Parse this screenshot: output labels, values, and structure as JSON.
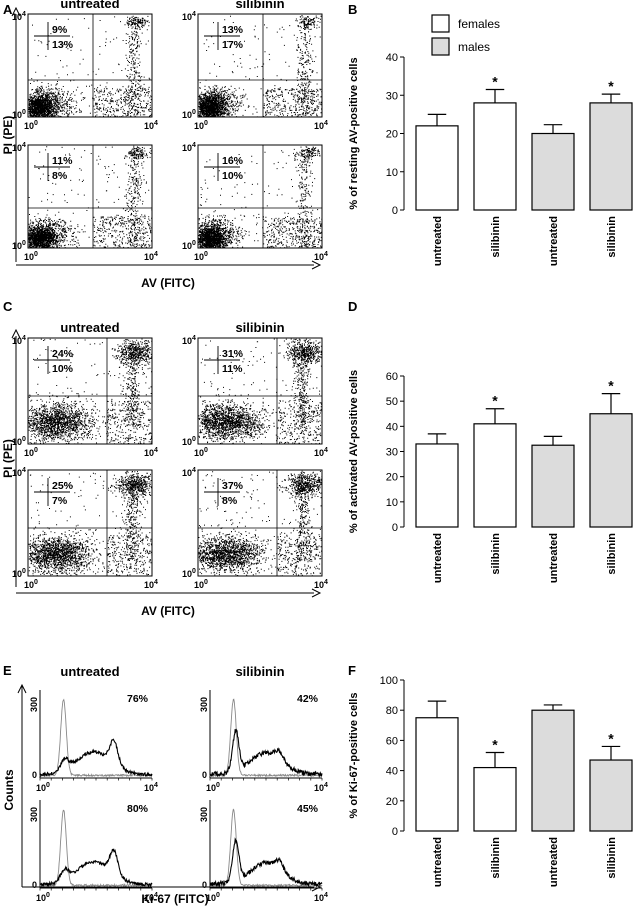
{
  "panels": {
    "A": {
      "label": "A",
      "col_titles": [
        "untreated",
        "silibinin"
      ],
      "ylabel": "PI (PE)",
      "xlabel": "AV (FITC)",
      "tick_low": "10",
      "tick_high": "10",
      "exp_low": "0",
      "exp_high": "4",
      "plots": [
        {
          "upper": "9%",
          "lower": "13%"
        },
        {
          "upper": "13%",
          "lower": "17%"
        },
        {
          "upper": "11%",
          "lower": "8%"
        },
        {
          "upper": "16%",
          "lower": "10%"
        }
      ]
    },
    "C": {
      "label": "C",
      "col_titles": [
        "untreated",
        "silibinin"
      ],
      "ylabel": "PI (PE)",
      "xlabel": "AV (FITC)",
      "tick_low": "10",
      "tick_high": "10",
      "exp_low": "0",
      "exp_high": "4",
      "plots": [
        {
          "upper": "24%",
          "lower": "10%"
        },
        {
          "upper": "31%",
          "lower": "11%"
        },
        {
          "upper": "25%",
          "lower": "7%"
        },
        {
          "upper": "37%",
          "lower": "8%"
        }
      ]
    },
    "E": {
      "label": "E",
      "col_titles": [
        "untreated",
        "silibinin"
      ],
      "ylabel": "Counts",
      "xlabel": "Ki-67 (FITC)",
      "tick_low": "10",
      "tick_high": "10",
      "exp_low": "0",
      "exp_high": "4",
      "ymax": "300",
      "ymin": "0",
      "plots": [
        {
          "pct": "76%"
        },
        {
          "pct": "42%"
        },
        {
          "pct": "80%"
        },
        {
          "pct": "45%"
        }
      ]
    }
  },
  "legend": {
    "females": "females",
    "males": "males"
  },
  "colors": {
    "females_fill": "#ffffff",
    "males_fill": "#dcdcdc",
    "ink": "#000000",
    "gray_trace": "#888888"
  },
  "chart_data": [
    {
      "type": "bar",
      "label": "B",
      "ylabel": "% of resting AV-positive cells",
      "ylim": [
        0,
        40
      ],
      "yticks": [
        0,
        10,
        20,
        30,
        40
      ],
      "categories": [
        "untreated",
        "silibinin",
        "untreated",
        "silibinin"
      ],
      "groups": [
        "females",
        "females",
        "males",
        "males"
      ],
      "values": [
        22,
        28,
        20,
        28
      ],
      "errors": [
        3,
        3.5,
        2.3,
        2.3
      ],
      "significant": [
        false,
        true,
        false,
        true
      ]
    },
    {
      "type": "bar",
      "label": "D",
      "ylabel": "% of activated AV-positive cells",
      "ylim": [
        0,
        60
      ],
      "yticks": [
        0,
        10,
        20,
        30,
        40,
        50,
        60
      ],
      "categories": [
        "untreated",
        "silibinin",
        "untreated",
        "silibinin"
      ],
      "groups": [
        "females",
        "females",
        "males",
        "males"
      ],
      "values": [
        33,
        41,
        32.5,
        45
      ],
      "errors": [
        4,
        6,
        3.5,
        8
      ],
      "significant": [
        false,
        true,
        false,
        true
      ]
    },
    {
      "type": "bar",
      "label": "F",
      "ylabel": "% of Ki-67-positive cells",
      "ylim": [
        0,
        100
      ],
      "yticks": [
        0,
        20,
        40,
        60,
        80,
        100
      ],
      "categories": [
        "untreated",
        "silibinin",
        "untreated",
        "silibinin"
      ],
      "groups": [
        "females",
        "females",
        "males",
        "males"
      ],
      "values": [
        75,
        42,
        80,
        47
      ],
      "errors": [
        11,
        10,
        3.5,
        9
      ],
      "significant": [
        false,
        true,
        false,
        true
      ]
    }
  ]
}
